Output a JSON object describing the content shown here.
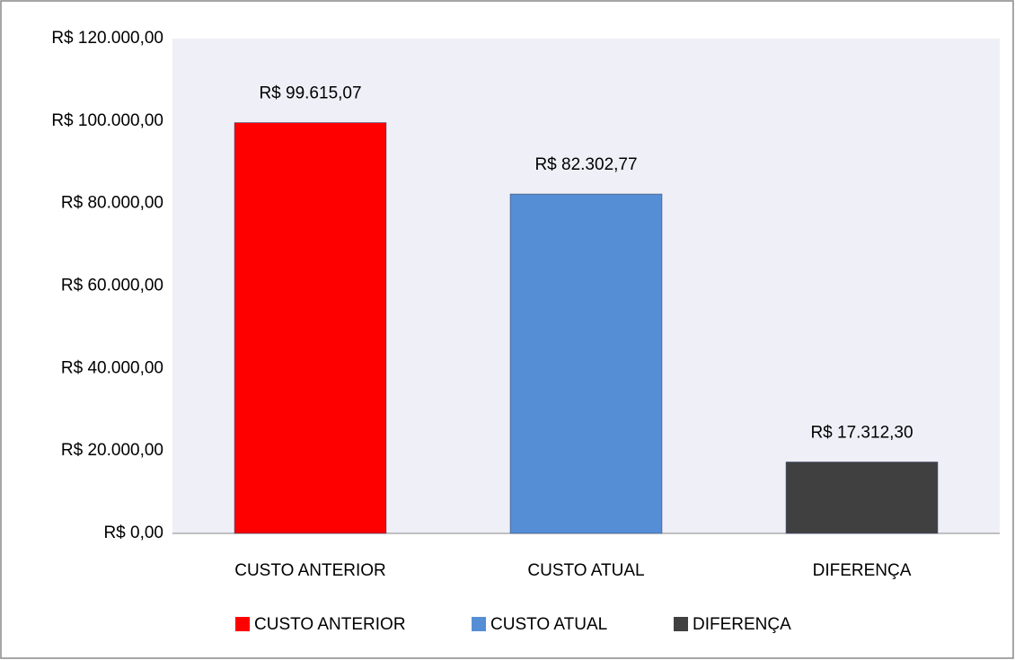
{
  "chart_data": {
    "type": "bar",
    "categories": [
      "CUSTO ANTERIOR",
      "CUSTO ATUAL",
      "DIFERENÇA"
    ],
    "values": [
      99615.07,
      82302.77,
      17312.3
    ],
    "value_labels": [
      "R$ 99.615,07",
      "R$ 82.302,77",
      "R$ 17.312,30"
    ],
    "colors": [
      "#ff0000",
      "#558ed5",
      "#404040"
    ],
    "ylim": [
      0,
      120000
    ],
    "yticks": [
      {
        "value": 0,
        "label": "R$ 0,00"
      },
      {
        "value": 20000,
        "label": "R$ 20.000,00"
      },
      {
        "value": 40000,
        "label": "R$ 40.000,00"
      },
      {
        "value": 60000,
        "label": "R$ 60.000,00"
      },
      {
        "value": 80000,
        "label": "R$ 80.000,00"
      },
      {
        "value": 100000,
        "label": "R$ 100.000,00"
      },
      {
        "value": 120000,
        "label": "R$ 120.000,00"
      }
    ],
    "grid": false,
    "legend": "bottom"
  }
}
